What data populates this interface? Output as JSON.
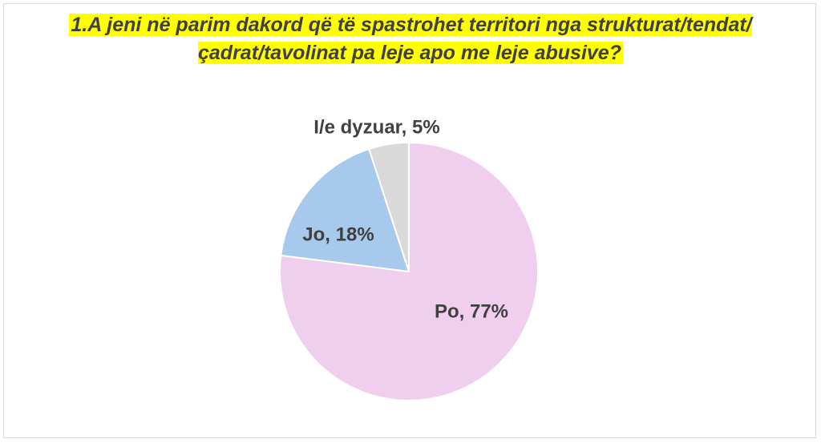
{
  "chart_data": {
    "type": "pie",
    "title": "1.A jeni në parim dakord që të spastrohet territori nga strukturat/tendat/çadrat/tavolinat pa leje apo me leje abusive?",
    "categories": [
      "Po",
      "Jo",
      "I/e dyzuar"
    ],
    "values": [
      77,
      18,
      5
    ],
    "labels": [
      "Po, 77%",
      "Jo, 18%",
      "I/e dyzuar, 5%"
    ],
    "colors": [
      "#f0cfee",
      "#a6c9ec",
      "#d9d9d9"
    ],
    "title_highlight": "#ffff00",
    "legend": "none"
  }
}
